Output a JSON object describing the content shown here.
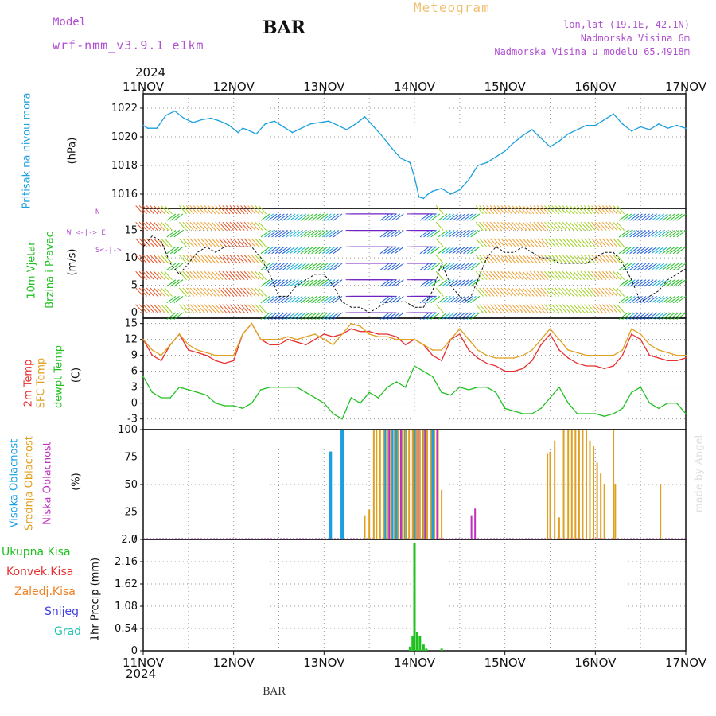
{
  "header": {
    "model_label": "Model",
    "model_name": "wrf-nmm_v3.9.1 e1km",
    "station": "BAR",
    "product": "Meteogram",
    "lonlat": "lon,lat (19.1E, 42.1N)",
    "elevation": "Nadmorska Visina 6m",
    "model_elevation": "Nadmorska Visina u modelu 65.4918m"
  },
  "footer": {
    "station": "BAR",
    "credit": "made by Angel"
  },
  "time_axis": {
    "year": "2024",
    "ticks": [
      "11NOV",
      "12NOV",
      "13NOV",
      "14NOV",
      "15NOV",
      "16NOV",
      "17NOV"
    ]
  },
  "panel_labels": {
    "pressure": "Pritisak na nivou mora",
    "pressure_unit": "(hPa)",
    "wind_1": "10m Vjetar",
    "wind_2": "Brzina i Pravac",
    "wind_unit": "(m/s)",
    "compass_n": "N",
    "compass_we": "W <-|-> E",
    "compass_s": "S<-|->",
    "temp_1": "2m Temp",
    "temp_2": "SFC Temp",
    "temp_3": "dewpt Temp",
    "temp_unit": "(C)",
    "cloud_1": "Visoka Oblacnost",
    "cloud_2": "Srednja Oblacnost",
    "cloud_3": "Niska Oblacnost",
    "cloud_unit": "(%)",
    "precip_unit": "1hr Precip (mm)",
    "precip_legend": [
      "Ukupna Kisa",
      "Konvek.Kisa",
      "Zaledj.Kisa",
      "Snijeg",
      "Grad"
    ]
  },
  "colors": {
    "pressure": "#1a9fe0",
    "t2m": "#e83030",
    "sfc": "#e0a020",
    "dewpt": "#20c020",
    "high_cloud": "#1a9fe0",
    "mid_cloud": "#e0a020",
    "low_cloud": "#c030c0",
    "total_rain": "#20c020",
    "conv_rain": "#e83030",
    "frz_rain": "#f08020",
    "snow": "#4040e0",
    "hail": "#20c0b0",
    "model": "#b050d0"
  },
  "chart_data": [
    {
      "type": "line",
      "name": "pressure",
      "ylabel": "(hPa)",
      "ylim": [
        1015,
        1023
      ],
      "yticks": [
        "1016",
        "1018",
        "1020",
        "1022"
      ],
      "x": [
        11.0,
        11.05,
        11.15,
        11.25,
        11.35,
        11.45,
        11.55,
        11.65,
        11.75,
        11.85,
        11.95,
        12.05,
        12.1,
        12.15,
        12.25,
        12.35,
        12.45,
        12.55,
        12.65,
        12.75,
        12.85,
        12.95,
        13.05,
        13.15,
        13.25,
        13.35,
        13.45,
        13.55,
        13.65,
        13.75,
        13.85,
        13.95,
        14.0,
        14.05,
        14.1,
        14.15,
        14.2,
        14.3,
        14.4,
        14.5,
        14.6,
        14.7,
        14.8,
        14.9,
        15.0,
        15.1,
        15.2,
        15.3,
        15.4,
        15.5,
        15.6,
        15.7,
        15.8,
        15.9,
        16.0,
        16.1,
        16.2,
        16.3,
        16.4,
        16.5,
        16.6,
        16.7,
        16.8,
        16.9,
        17.0
      ],
      "values": [
        1020.8,
        1020.6,
        1020.6,
        1021.5,
        1021.8,
        1021.3,
        1021.0,
        1021.2,
        1021.3,
        1021.1,
        1020.8,
        1020.3,
        1020.6,
        1020.5,
        1020.2,
        1020.9,
        1021.1,
        1020.7,
        1020.3,
        1020.6,
        1020.9,
        1021.0,
        1021.1,
        1020.8,
        1020.5,
        1020.9,
        1021.4,
        1020.7,
        1020.0,
        1019.2,
        1018.5,
        1018.2,
        1017.2,
        1015.8,
        1015.7,
        1016.0,
        1016.2,
        1016.4,
        1016.0,
        1016.3,
        1017.0,
        1018.0,
        1018.2,
        1018.6,
        1019.0,
        1019.6,
        1020.1,
        1020.5,
        1019.9,
        1019.3,
        1019.7,
        1020.2,
        1020.5,
        1020.8,
        1020.8,
        1021.2,
        1021.6,
        1020.9,
        1020.4,
        1020.7,
        1020.5,
        1020.9,
        1020.6,
        1020.8,
        1020.6
      ]
    },
    {
      "type": "line",
      "name": "wind_speed",
      "ylabel": "(m/s)",
      "ylim": [
        -1,
        19
      ],
      "yticks": [
        "0",
        "5",
        "10",
        "15"
      ],
      "x": [
        11.0,
        11.1,
        11.2,
        11.3,
        11.4,
        11.5,
        11.6,
        11.7,
        11.8,
        11.9,
        12.0,
        12.1,
        12.2,
        12.3,
        12.4,
        12.5,
        12.6,
        12.7,
        12.8,
        12.9,
        13.0,
        13.1,
        13.2,
        13.3,
        13.4,
        13.5,
        13.6,
        13.7,
        13.8,
        13.9,
        14.0,
        14.1,
        14.2,
        14.3,
        14.4,
        14.5,
        14.6,
        14.7,
        14.8,
        14.9,
        15.0,
        15.1,
        15.2,
        15.3,
        15.4,
        15.5,
        15.6,
        15.7,
        15.8,
        15.9,
        16.0,
        16.1,
        16.2,
        16.3,
        16.4,
        16.5,
        16.6,
        16.7,
        16.8,
        16.9,
        17.0
      ],
      "values": [
        12,
        14,
        13,
        9,
        7,
        9,
        11,
        12,
        11,
        12,
        12,
        12,
        12,
        10,
        7,
        3,
        3,
        5,
        6,
        7,
        7,
        5,
        2,
        1,
        1,
        0,
        1,
        2,
        2,
        2,
        1,
        1,
        4,
        9,
        5,
        3,
        2,
        6,
        10,
        12,
        11,
        11,
        12,
        11,
        10,
        10,
        9,
        9,
        9,
        9,
        10,
        11,
        11,
        9,
        6,
        2,
        3,
        4,
        6,
        7,
        8
      ]
    },
    {
      "type": "line",
      "ylabel": "(C)",
      "ylim": [
        -5,
        16
      ],
      "yticks": [
        "-3",
        "0",
        "3",
        "6",
        "9",
        "12",
        "15"
      ],
      "x": [
        11.0,
        11.1,
        11.2,
        11.3,
        11.4,
        11.5,
        11.6,
        11.7,
        11.8,
        11.9,
        12.0,
        12.1,
        12.2,
        12.3,
        12.4,
        12.5,
        12.6,
        12.7,
        12.8,
        12.9,
        13.0,
        13.1,
        13.2,
        13.3,
        13.4,
        13.5,
        13.6,
        13.7,
        13.8,
        13.9,
        14.0,
        14.1,
        14.2,
        14.3,
        14.4,
        14.5,
        14.6,
        14.7,
        14.8,
        14.9,
        15.0,
        15.1,
        15.2,
        15.3,
        15.4,
        15.5,
        15.6,
        15.7,
        15.8,
        15.9,
        16.0,
        16.1,
        16.2,
        16.3,
        16.4,
        16.5,
        16.6,
        16.7,
        16.8,
        16.9,
        17.0
      ],
      "series": [
        {
          "name": "2m Temp",
          "values": [
            12,
            9,
            8,
            11,
            13,
            10,
            9.5,
            9,
            8,
            7.5,
            8,
            13,
            15,
            12,
            11,
            11,
            12,
            11.5,
            11,
            12,
            13,
            12.5,
            13,
            14,
            13.5,
            13.5,
            13,
            13,
            12.5,
            11,
            12,
            11,
            9,
            8,
            12,
            13,
            10,
            8.5,
            7.5,
            7,
            6,
            6,
            6.5,
            8,
            11,
            13,
            10,
            8.5,
            7.5,
            7,
            7,
            6.5,
            7,
            9,
            13,
            12,
            9,
            8.5,
            8,
            8,
            8.5
          ]
        },
        {
          "name": "SFC Temp",
          "values": [
            12,
            10,
            9,
            11,
            13,
            11,
            10,
            9.5,
            9,
            9,
            9,
            13,
            15,
            12,
            12,
            12,
            12.5,
            12,
            12.5,
            13,
            12,
            11,
            13,
            15,
            14.5,
            13,
            12.5,
            12.5,
            12,
            12,
            12,
            11,
            10,
            10,
            12,
            14,
            12,
            10,
            9,
            8.5,
            8.5,
            8.5,
            9,
            10,
            12,
            14,
            12,
            10,
            9.5,
            9,
            9,
            9,
            9,
            10,
            14,
            13,
            11,
            10,
            9.5,
            9,
            9
          ]
        },
        {
          "name": "dewpt Temp",
          "values": [
            5,
            2,
            1,
            1,
            3,
            2.5,
            2,
            1.5,
            0,
            -0.5,
            -0.5,
            -1,
            0,
            2.5,
            3,
            3,
            3,
            3,
            2,
            1,
            0,
            -2,
            -3,
            1,
            0,
            2,
            1,
            3,
            4,
            3,
            7,
            6,
            5,
            2,
            1.5,
            3,
            2.5,
            3,
            3,
            2,
            -1,
            -1.5,
            -2,
            -2,
            -1,
            1,
            3,
            0,
            -2,
            -2,
            -2,
            -2.5,
            -2,
            -1,
            2,
            3,
            0,
            -1,
            0,
            0,
            -2
          ]
        }
      ]
    },
    {
      "type": "bar",
      "ylabel": "(%)",
      "ylim": [
        0,
        100
      ],
      "yticks": [
        "0",
        "25",
        "50",
        "75",
        "100"
      ],
      "series": [
        {
          "name": "Visoka Oblacnost",
          "x": [
            13.07,
            13.2,
            13.67,
            13.75,
            13.8,
            13.9,
            14.0,
            14.1,
            14.2
          ],
          "values": [
            80,
            100,
            100,
            100,
            100,
            100,
            100,
            100,
            100
          ]
        },
        {
          "name": "Srednja Oblacnost",
          "x": [
            13.45,
            13.5,
            13.55,
            13.58,
            13.62,
            13.66,
            13.7,
            13.74,
            13.78,
            13.82,
            13.86,
            13.9,
            13.94,
            13.98,
            14.02,
            14.06,
            14.1,
            14.14,
            14.18,
            14.22,
            14.26,
            14.3,
            15.47,
            15.5,
            15.55,
            15.6,
            15.65,
            15.7,
            15.74,
            15.78,
            15.82,
            15.86,
            15.9,
            15.94,
            15.98,
            16.02,
            16.06,
            16.1,
            16.2,
            16.22,
            16.72
          ],
          "values": [
            22,
            27,
            100,
            100,
            100,
            100,
            100,
            100,
            100,
            100,
            100,
            100,
            100,
            100,
            100,
            100,
            100,
            100,
            100,
            100,
            100,
            45,
            78,
            80,
            90,
            20,
            100,
            100,
            100,
            100,
            100,
            100,
            100,
            90,
            85,
            70,
            60,
            50,
            100,
            50,
            50
          ]
        },
        {
          "name": "Niska Oblacnost",
          "x": [
            13.72,
            13.85,
            14.04,
            14.12,
            14.25,
            14.63,
            14.67
          ],
          "values": [
            100,
            100,
            100,
            100,
            100,
            22,
            28
          ]
        }
      ]
    },
    {
      "type": "bar",
      "ylabel": "1hr Precip (mm)",
      "ylim": [
        0,
        2.7
      ],
      "yticks": [
        "0",
        "0.54",
        "1.08",
        "1.62",
        "2.16",
        "2.7"
      ],
      "categories": [
        13.95,
        13.98,
        14.0,
        14.03,
        14.06,
        14.1,
        14.13,
        14.3
      ],
      "series": [
        {
          "name": "Ukupna Kisa",
          "values": [
            0.1,
            0.35,
            2.62,
            0.45,
            0.35,
            0.15,
            0.05,
            0.05
          ]
        }
      ]
    }
  ]
}
